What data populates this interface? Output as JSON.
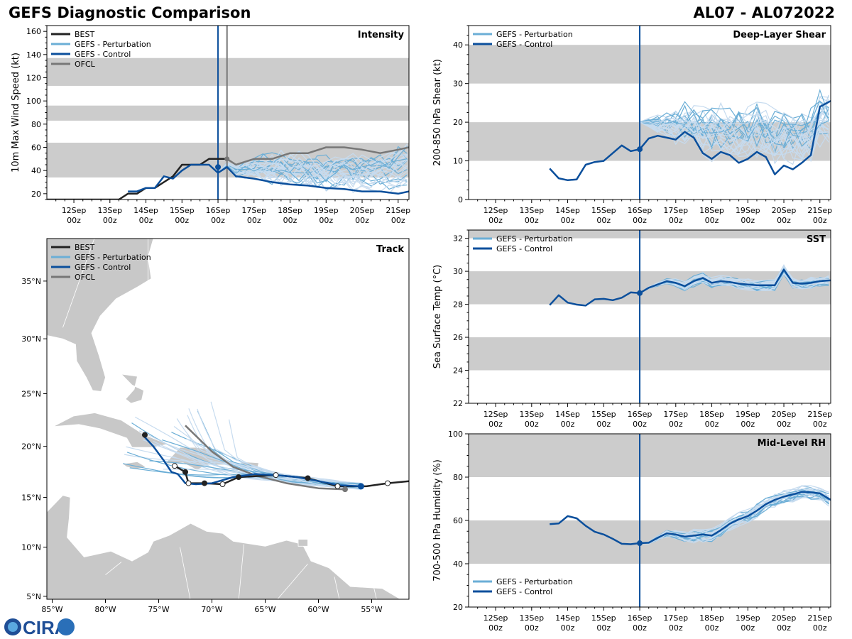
{
  "header": {
    "title": "GEFS Diagnostic Comparison",
    "storm_id": "AL07 - AL072022"
  },
  "colors": {
    "best": "#222222",
    "perturbation": "#6baed6",
    "perturbation_light": "#c6dbef",
    "control": "#0b4f9c",
    "ofcl": "#777777",
    "band": "#cccccc",
    "land": "#c8c8c8"
  },
  "time_axis": {
    "tick_labels": [
      {
        "t": 0,
        "day": "12Sep",
        "hour": "00z"
      },
      {
        "t": 1,
        "day": "13Sep",
        "hour": "00z"
      },
      {
        "t": 2,
        "day": "14Sep",
        "hour": "00z"
      },
      {
        "t": 3,
        "day": "15Sep",
        "hour": "00z"
      },
      {
        "t": 4,
        "day": "16Sep",
        "hour": "00z"
      },
      {
        "t": 5,
        "day": "17Sep",
        "hour": "00z"
      },
      {
        "t": 6,
        "day": "18Sep",
        "hour": "00z"
      },
      {
        "t": 7,
        "day": "19Sep",
        "hour": "00z"
      },
      {
        "t": 8,
        "day": "20Sep",
        "hour": "00z"
      },
      {
        "t": 9,
        "day": "21Sep",
        "hour": "00z"
      }
    ]
  },
  "chart_data": [
    {
      "id": "intensity",
      "type": "line",
      "title": "Intensity",
      "ylabel": "10m Max Wind Speed (kt)",
      "xlim": [
        -0.75,
        9.3
      ],
      "ylim": [
        15,
        165
      ],
      "yticks": [
        20,
        40,
        60,
        80,
        100,
        120,
        140,
        160
      ],
      "bands": [
        [
          34,
          64
        ],
        [
          83,
          96
        ],
        [
          113,
          137
        ]
      ],
      "init_line": 4.0,
      "ofcl_line": 4.25,
      "legend": [
        "BEST",
        "GEFS - Perturbation",
        "GEFS - Control",
        "OFCL"
      ],
      "series": [
        {
          "name": "BEST",
          "x": [
            -0.75,
            0,
            1,
            1.25,
            1.5,
            1.75,
            2,
            2.25,
            2.5,
            2.75,
            3,
            3.25,
            3.5,
            3.75,
            4,
            4.25
          ],
          "values": [
            15,
            15,
            15,
            15,
            20,
            20,
            25,
            25,
            30,
            35,
            45,
            45,
            45,
            50,
            50,
            50
          ]
        },
        {
          "name": "GEFS - Control",
          "x": [
            1.5,
            1.75,
            2,
            2.25,
            2.5,
            2.75,
            3,
            3.25,
            3.5,
            3.75,
            4,
            4.25,
            4.5,
            5,
            5.5,
            6,
            6.5,
            7,
            7.5,
            8,
            8.5,
            9,
            9.3
          ],
          "values": [
            22,
            22,
            25,
            25,
            35,
            33,
            40,
            45,
            45,
            45,
            38,
            43,
            35,
            33,
            30,
            28,
            27,
            25,
            24,
            22,
            22,
            20,
            22
          ]
        },
        {
          "name": "OFCL",
          "x": [
            4.25,
            4.5,
            5,
            5.5,
            6,
            6.5,
            7,
            7.5,
            8,
            8.5,
            9,
            9.3
          ],
          "values": [
            50,
            45,
            50,
            50,
            55,
            55,
            60,
            60,
            58,
            55,
            58,
            60
          ]
        }
      ],
      "markers": [
        {
          "x": 4.0,
          "y": 43
        }
      ]
    },
    {
      "id": "shear",
      "type": "line",
      "title": "Deep-Layer Shear",
      "ylabel": "200-850 hPa Shear (kt)",
      "xlim": [
        -0.75,
        9.3
      ],
      "ylim": [
        0,
        45
      ],
      "yticks": [
        0,
        10,
        20,
        30,
        40
      ],
      "bands": [
        [
          10,
          20
        ],
        [
          30,
          40
        ]
      ],
      "init_line": 4.0,
      "legend": [
        "GEFS - Perturbation",
        "GEFS - Control"
      ],
      "series": [
        {
          "name": "GEFS - Control",
          "x": [
            1.5,
            1.75,
            2,
            2.25,
            2.5,
            2.75,
            3,
            3.25,
            3.5,
            3.75,
            4,
            4.25,
            4.5,
            4.75,
            5,
            5.25,
            5.5,
            5.75,
            6,
            6.25,
            6.5,
            6.75,
            7,
            7.25,
            7.5,
            7.75,
            8,
            8.25,
            8.5,
            8.75,
            9,
            9.3
          ],
          "values": [
            8,
            5.5,
            5,
            5.2,
            9,
            9.7,
            10,
            12,
            14,
            12.5,
            13,
            15.8,
            16.5,
            16,
            15.5,
            17.5,
            16,
            12,
            10.5,
            12.3,
            11.5,
            9.5,
            10.5,
            12.3,
            11,
            6.5,
            8.8,
            7.8,
            9.5,
            11.5,
            24,
            25.5
          ]
        }
      ],
      "markers": [
        {
          "x": 4.0,
          "y": 13
        }
      ]
    },
    {
      "id": "sst",
      "type": "line",
      "title": "SST",
      "ylabel": "Sea Surface Temp (°C)",
      "xlim": [
        -0.75,
        9.3
      ],
      "ylim": [
        22,
        32.5
      ],
      "yticks": [
        22,
        24,
        26,
        28,
        30,
        32
      ],
      "bands": [
        [
          24,
          26
        ],
        [
          28,
          30
        ],
        [
          32,
          34
        ]
      ],
      "init_line": 4.0,
      "legend": [
        "GEFS - Perturbation",
        "GEFS - Control"
      ],
      "series": [
        {
          "name": "GEFS - Control",
          "x": [
            1.5,
            1.75,
            2,
            2.25,
            2.5,
            2.75,
            3,
            3.25,
            3.5,
            3.75,
            4,
            4.25,
            4.5,
            4.75,
            5,
            5.25,
            5.5,
            5.75,
            6,
            6.25,
            6.5,
            6.75,
            7,
            7.25,
            7.5,
            7.75,
            8,
            8.25,
            8.5,
            8.75,
            9,
            9.3
          ],
          "values": [
            27.95,
            28.55,
            28.1,
            27.98,
            27.92,
            28.3,
            28.33,
            28.25,
            28.4,
            28.72,
            28.68,
            29,
            29.2,
            29.4,
            29.3,
            29.1,
            29.4,
            29.6,
            29.3,
            29.4,
            29.35,
            29.25,
            29.2,
            29.15,
            29.15,
            29.15,
            30.1,
            29.3,
            29.25,
            29.3,
            29.4,
            29.45
          ]
        }
      ],
      "markers": [
        {
          "x": 4.0,
          "y": 28.68
        }
      ]
    },
    {
      "id": "rh",
      "type": "line",
      "title": "Mid-Level RH",
      "ylabel": "700-500 hPa Humidity (%)",
      "xlim": [
        -0.75,
        9.3
      ],
      "ylim": [
        20,
        100
      ],
      "yticks": [
        20,
        40,
        60,
        80,
        100
      ],
      "bands": [
        [
          40,
          60
        ],
        [
          80,
          100
        ]
      ],
      "init_line": 4.0,
      "legend": [
        "GEFS - Perturbation",
        "GEFS - Control"
      ],
      "series": [
        {
          "name": "GEFS - Control",
          "x": [
            1.5,
            1.75,
            2,
            2.25,
            2.5,
            2.75,
            3,
            3.25,
            3.5,
            3.75,
            4,
            4.25,
            4.5,
            4.75,
            5,
            5.25,
            5.5,
            5.75,
            6,
            6.25,
            6.5,
            6.75,
            7,
            7.25,
            7.5,
            7.75,
            8,
            8.25,
            8.5,
            8.75,
            9,
            9.3
          ],
          "values": [
            58.3,
            58.6,
            62,
            61,
            57.5,
            54.8,
            53.5,
            51.5,
            49.2,
            49,
            49.5,
            49.7,
            52,
            54,
            53.5,
            52.5,
            53,
            53.5,
            53,
            55.5,
            58.5,
            60.5,
            62,
            64.5,
            67.5,
            69.5,
            71,
            72,
            73.2,
            73,
            72.5,
            69.5
          ]
        }
      ],
      "markers": [
        {
          "x": 4.0,
          "y": 49.5
        }
      ]
    },
    {
      "id": "track",
      "type": "line",
      "title": "Track",
      "xlim": [
        -85.5,
        -51.5
      ],
      "ylim": [
        4.7,
        38.5
      ],
      "lon_ticks": [
        {
          "v": -85,
          "label": "85°W"
        },
        {
          "v": -80,
          "label": "80°W"
        },
        {
          "v": -75,
          "label": "75°W"
        },
        {
          "v": -70,
          "label": "70°W"
        },
        {
          "v": -65,
          "label": "65°W"
        },
        {
          "v": -60,
          "label": "60°W"
        },
        {
          "v": -55,
          "label": "55°W"
        }
      ],
      "lat_ticks": [
        {
          "v": 5,
          "label": "5°N"
        },
        {
          "v": 10,
          "label": "10°N"
        },
        {
          "v": 15,
          "label": "15°N"
        },
        {
          "v": 20,
          "label": "20°N"
        },
        {
          "v": 25,
          "label": "25°N"
        },
        {
          "v": 30,
          "label": "30°N"
        },
        {
          "v": 35,
          "label": "35°N"
        }
      ],
      "legend": [
        "BEST",
        "GEFS - Perturbation",
        "GEFS - Control",
        "OFCL"
      ],
      "best_track": {
        "lon": [
          -51.5,
          -53.5,
          -55.5,
          -58.2,
          -61,
          -64,
          -67.5,
          -69,
          -70.7,
          -72.2,
          -72.5,
          -73.5
        ],
        "lat": [
          16.6,
          16.4,
          16.1,
          16.1,
          16.9,
          17.2,
          17,
          16.3,
          16.4,
          16.4,
          17.5,
          18.1
        ]
      },
      "control_track": {
        "lon": [
          -56,
          -58,
          -60,
          -62,
          -64,
          -66,
          -68,
          -70,
          -71.5,
          -72.5,
          -73.2,
          -73.8,
          -74.5,
          -75.5,
          -76.5
        ],
        "lat": [
          16.1,
          16.2,
          16.6,
          17.0,
          17.2,
          17.3,
          17.0,
          16.4,
          16.3,
          16.4,
          17.3,
          17.5,
          18.6,
          20,
          21.1
        ]
      },
      "ofcl_track": {
        "lon": [
          -57.5,
          -60,
          -63,
          -66,
          -68,
          -70,
          -71.5,
          -72.5
        ],
        "lat": [
          15.8,
          15.9,
          16.4,
          17.2,
          18.0,
          19.5,
          21,
          22
        ]
      },
      "fix_points": [
        {
          "lon": -53.5,
          "lat": 16.4,
          "filled": false
        },
        {
          "lon": -58.2,
          "lat": 16.1,
          "filled": false
        },
        {
          "lon": -61,
          "lat": 16.9,
          "filled": true
        },
        {
          "lon": -64,
          "lat": 17.2,
          "filled": false
        },
        {
          "lon": -67.5,
          "lat": 17.0,
          "filled": true
        },
        {
          "lon": -69,
          "lat": 16.3,
          "filled": false
        },
        {
          "lon": -70.7,
          "lat": 16.4,
          "filled": true
        },
        {
          "lon": -72.2,
          "lat": 16.4,
          "filled": false
        },
        {
          "lon": -72.5,
          "lat": 17.5,
          "filled": true
        },
        {
          "lon": -73.5,
          "lat": 18.1,
          "filled": false
        },
        {
          "lon": -76.3,
          "lat": 21.1,
          "filled": true
        }
      ]
    }
  ],
  "logo": {
    "text": "CIRA"
  }
}
